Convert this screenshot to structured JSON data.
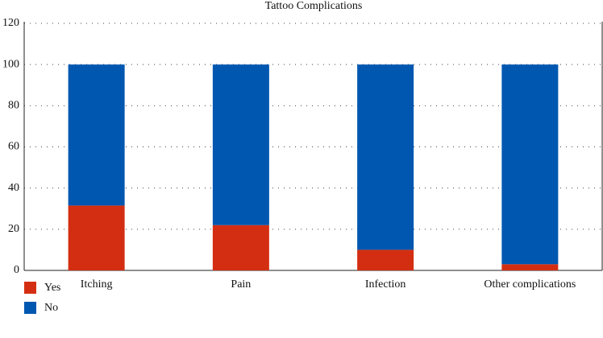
{
  "chart_data": {
    "type": "stacked-bar",
    "title": "Tattoo Complications",
    "categories": [
      "Itching",
      "Pain",
      "Infection",
      "Other complications"
    ],
    "series": [
      {
        "name": "Yes",
        "color": "#d42e12",
        "values": [
          31.5,
          22,
          10,
          3
        ]
      },
      {
        "name": "No",
        "color": "#0057b0",
        "values": [
          68.5,
          78,
          90,
          97
        ]
      }
    ],
    "ylim": [
      0,
      120
    ],
    "yticks": [
      0,
      20,
      40,
      60,
      80,
      100,
      120
    ],
    "grid": true
  }
}
